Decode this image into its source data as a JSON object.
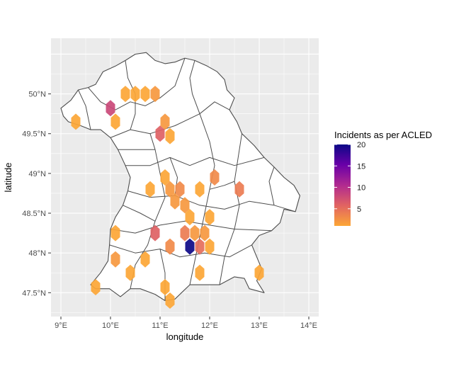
{
  "chart_data": {
    "type": "heatmap",
    "subtype": "hexbin-map",
    "title": "",
    "xlabel": "longitude",
    "ylabel": "latitude",
    "xlim": [
      8.8,
      14.2
    ],
    "ylim": [
      47.2,
      50.7
    ],
    "x_ticks": [
      {
        "value": 9,
        "label": "9°E"
      },
      {
        "value": 10,
        "label": "10°E"
      },
      {
        "value": 11,
        "label": "11°E"
      },
      {
        "value": 12,
        "label": "12°E"
      },
      {
        "value": 13,
        "label": "13°E"
      },
      {
        "value": 14,
        "label": "14°E"
      }
    ],
    "y_ticks": [
      {
        "value": 47.5,
        "label": "47.5°N"
      },
      {
        "value": 48,
        "label": "48°N"
      },
      {
        "value": 48.5,
        "label": "48.5°N"
      },
      {
        "value": 49,
        "label": "49°N"
      },
      {
        "value": 49.5,
        "label": "49.5°N"
      },
      {
        "value": 50,
        "label": "50°N"
      }
    ],
    "grid": true,
    "legend": {
      "title": "Incidents as per ACLED",
      "position": "right",
      "min": 1,
      "max": 20,
      "breaks": [
        {
          "value": 20,
          "label": "20"
        },
        {
          "value": 15,
          "label": "15"
        },
        {
          "value": 10,
          "label": "10"
        },
        {
          "value": 5,
          "label": "5"
        }
      ],
      "colors": [
        "#fca636",
        "#e16462",
        "#b12a90",
        "#6a00a8",
        "#0d0887"
      ]
    },
    "bins": [
      {
        "lon": 10.3,
        "lat": 50.0,
        "count": 1
      },
      {
        "lon": 10.5,
        "lat": 50.0,
        "count": 1
      },
      {
        "lon": 10.7,
        "lat": 50.0,
        "count": 1
      },
      {
        "lon": 10.9,
        "lat": 50.0,
        "count": 2
      },
      {
        "lon": 10.0,
        "lat": 49.82,
        "count": 8
      },
      {
        "lon": 10.1,
        "lat": 49.65,
        "count": 1
      },
      {
        "lon": 9.3,
        "lat": 49.65,
        "count": 1
      },
      {
        "lon": 11.1,
        "lat": 49.65,
        "count": 2
      },
      {
        "lon": 11.0,
        "lat": 49.5,
        "count": 6
      },
      {
        "lon": 11.2,
        "lat": 49.47,
        "count": 1
      },
      {
        "lon": 11.1,
        "lat": 48.95,
        "count": 1
      },
      {
        "lon": 12.1,
        "lat": 48.95,
        "count": 3
      },
      {
        "lon": 10.8,
        "lat": 48.8,
        "count": 1
      },
      {
        "lon": 11.2,
        "lat": 48.8,
        "count": 2
      },
      {
        "lon": 11.4,
        "lat": 48.8,
        "count": 3
      },
      {
        "lon": 11.8,
        "lat": 48.8,
        "count": 1
      },
      {
        "lon": 12.6,
        "lat": 48.8,
        "count": 4
      },
      {
        "lon": 11.3,
        "lat": 48.65,
        "count": 2
      },
      {
        "lon": 11.5,
        "lat": 48.6,
        "count": 2
      },
      {
        "lon": 11.6,
        "lat": 48.45,
        "count": 1
      },
      {
        "lon": 12.0,
        "lat": 48.45,
        "count": 1
      },
      {
        "lon": 10.1,
        "lat": 48.25,
        "count": 1
      },
      {
        "lon": 10.9,
        "lat": 48.25,
        "count": 6
      },
      {
        "lon": 11.5,
        "lat": 48.25,
        "count": 4
      },
      {
        "lon": 11.7,
        "lat": 48.25,
        "count": 2
      },
      {
        "lon": 11.9,
        "lat": 48.25,
        "count": 2
      },
      {
        "lon": 11.2,
        "lat": 48.08,
        "count": 3
      },
      {
        "lon": 11.6,
        "lat": 48.08,
        "count": 20
      },
      {
        "lon": 11.8,
        "lat": 48.08,
        "count": 5
      },
      {
        "lon": 12.0,
        "lat": 48.08,
        "count": 1
      },
      {
        "lon": 10.1,
        "lat": 47.92,
        "count": 2
      },
      {
        "lon": 10.7,
        "lat": 47.92,
        "count": 1
      },
      {
        "lon": 10.4,
        "lat": 47.75,
        "count": 1
      },
      {
        "lon": 11.8,
        "lat": 47.75,
        "count": 1
      },
      {
        "lon": 13.0,
        "lat": 47.75,
        "count": 1
      },
      {
        "lon": 9.7,
        "lat": 47.57,
        "count": 1
      },
      {
        "lon": 11.1,
        "lat": 47.57,
        "count": 1
      },
      {
        "lon": 11.2,
        "lat": 47.4,
        "count": 1
      }
    ]
  },
  "basemap": {
    "outline": [
      [
        9.0,
        49.82
      ],
      [
        9.2,
        49.92
      ],
      [
        9.35,
        50.05
      ],
      [
        9.55,
        50.08
      ],
      [
        9.7,
        50.12
      ],
      [
        9.85,
        50.28
      ],
      [
        10.1,
        50.35
      ],
      [
        10.3,
        50.42
      ],
      [
        10.5,
        50.5
      ],
      [
        10.72,
        50.52
      ],
      [
        10.9,
        50.42
      ],
      [
        11.1,
        50.38
      ],
      [
        11.3,
        50.4
      ],
      [
        11.5,
        50.45
      ],
      [
        11.7,
        50.42
      ],
      [
        11.95,
        50.35
      ],
      [
        12.15,
        50.28
      ],
      [
        12.3,
        50.18
      ],
      [
        12.35,
        50.05
      ],
      [
        12.5,
        49.95
      ],
      [
        12.4,
        49.8
      ],
      [
        12.55,
        49.65
      ],
      [
        12.65,
        49.5
      ],
      [
        12.9,
        49.35
      ],
      [
        13.1,
        49.2
      ],
      [
        13.3,
        49.08
      ],
      [
        13.5,
        48.95
      ],
      [
        13.7,
        48.85
      ],
      [
        13.82,
        48.72
      ],
      [
        13.73,
        48.52
      ],
      [
        13.5,
        48.55
      ],
      [
        13.42,
        48.38
      ],
      [
        13.25,
        48.28
      ],
      [
        13.0,
        48.22
      ],
      [
        12.85,
        48.1
      ],
      [
        12.95,
        47.95
      ],
      [
        13.05,
        47.8
      ],
      [
        12.95,
        47.65
      ],
      [
        13.1,
        47.5
      ],
      [
        12.8,
        47.55
      ],
      [
        12.7,
        47.68
      ],
      [
        12.5,
        47.7
      ],
      [
        12.2,
        47.6
      ],
      [
        11.9,
        47.6
      ],
      [
        11.6,
        47.6
      ],
      [
        11.3,
        47.42
      ],
      [
        11.1,
        47.4
      ],
      [
        10.9,
        47.48
      ],
      [
        10.6,
        47.55
      ],
      [
        10.4,
        47.55
      ],
      [
        10.2,
        47.45
      ],
      [
        9.98,
        47.55
      ],
      [
        9.7,
        47.55
      ],
      [
        9.6,
        47.6
      ],
      [
        9.8,
        47.75
      ],
      [
        9.95,
        47.9
      ],
      [
        9.98,
        48.1
      ],
      [
        10.0,
        48.3
      ],
      [
        10.1,
        48.45
      ],
      [
        10.25,
        48.6
      ],
      [
        10.35,
        48.78
      ],
      [
        10.4,
        48.95
      ],
      [
        10.3,
        49.1
      ],
      [
        10.15,
        49.3
      ],
      [
        10.0,
        49.45
      ],
      [
        9.8,
        49.55
      ],
      [
        9.6,
        49.55
      ],
      [
        9.4,
        49.6
      ],
      [
        9.15,
        49.65
      ],
      [
        9.05,
        49.72
      ],
      [
        9.0,
        49.82
      ]
    ],
    "borders": [
      [
        [
          10.0,
          49.45
        ],
        [
          10.4,
          49.55
        ],
        [
          10.8,
          49.5
        ],
        [
          11.3,
          49.6
        ],
        [
          11.8,
          49.75
        ],
        [
          12.1,
          49.9
        ],
        [
          12.4,
          49.8
        ]
      ],
      [
        [
          10.35,
          48.78
        ],
        [
          10.8,
          48.7
        ],
        [
          11.3,
          48.72
        ],
        [
          11.8,
          48.6
        ],
        [
          12.3,
          48.55
        ],
        [
          12.8,
          48.65
        ],
        [
          13.3,
          48.6
        ],
        [
          13.73,
          48.52
        ]
      ],
      [
        [
          10.3,
          49.1
        ],
        [
          10.8,
          49.1
        ],
        [
          11.2,
          49.2
        ],
        [
          11.6,
          49.1
        ],
        [
          12.0,
          49.2
        ],
        [
          12.5,
          49.1
        ],
        [
          13.1,
          49.2
        ]
      ],
      [
        [
          10.0,
          48.3
        ],
        [
          10.5,
          48.25
        ],
        [
          11.0,
          48.35
        ],
        [
          11.5,
          48.4
        ],
        [
          12.0,
          48.35
        ],
        [
          12.5,
          48.3
        ],
        [
          13.25,
          48.28
        ]
      ],
      [
        [
          9.98,
          48.1
        ],
        [
          10.5,
          48.0
        ],
        [
          11.0,
          48.05
        ],
        [
          11.4,
          47.95
        ],
        [
          11.9,
          48.0
        ],
        [
          12.4,
          47.95
        ],
        [
          12.85,
          48.1
        ]
      ],
      [
        [
          10.4,
          47.55
        ],
        [
          10.5,
          47.85
        ],
        [
          10.75,
          48.1
        ],
        [
          10.9,
          48.4
        ],
        [
          11.1,
          48.7
        ],
        [
          11.0,
          49.0
        ],
        [
          10.9,
          49.3
        ],
        [
          10.8,
          49.5
        ]
      ],
      [
        [
          11.6,
          47.6
        ],
        [
          11.7,
          47.9
        ],
        [
          11.8,
          48.2
        ],
        [
          11.9,
          48.5
        ],
        [
          12.0,
          48.8
        ],
        [
          12.1,
          49.1
        ],
        [
          12.0,
          49.4
        ],
        [
          11.8,
          49.75
        ]
      ],
      [
        [
          12.2,
          47.6
        ],
        [
          12.3,
          47.95
        ],
        [
          12.5,
          48.3
        ],
        [
          12.6,
          48.6
        ],
        [
          12.5,
          48.9
        ],
        [
          12.65,
          49.5
        ]
      ],
      [
        [
          9.55,
          50.08
        ],
        [
          9.8,
          49.9
        ],
        [
          10.1,
          49.8
        ],
        [
          10.4,
          49.9
        ],
        [
          10.7,
          49.85
        ],
        [
          11.0,
          49.95
        ],
        [
          11.3,
          50.1
        ],
        [
          11.5,
          50.45
        ]
      ],
      [
        [
          10.3,
          50.42
        ],
        [
          10.35,
          50.2
        ],
        [
          10.5,
          50.0
        ],
        [
          10.5,
          49.75
        ],
        [
          10.4,
          49.55
        ]
      ],
      [
        [
          11.7,
          50.42
        ],
        [
          11.6,
          50.2
        ],
        [
          11.65,
          50.0
        ],
        [
          11.8,
          49.75
        ]
      ],
      [
        [
          9.35,
          50.05
        ],
        [
          9.5,
          49.85
        ],
        [
          9.6,
          49.55
        ]
      ],
      [
        [
          10.15,
          49.3
        ],
        [
          10.5,
          49.3
        ],
        [
          10.9,
          49.3
        ]
      ],
      [
        [
          11.3,
          48.72
        ],
        [
          11.35,
          48.95
        ],
        [
          11.2,
          49.2
        ]
      ],
      [
        [
          12.0,
          48.8
        ],
        [
          12.3,
          48.85
        ],
        [
          12.5,
          48.9
        ]
      ],
      [
        [
          11.0,
          48.05
        ],
        [
          11.1,
          47.75
        ],
        [
          11.1,
          47.4
        ]
      ],
      [
        [
          10.9,
          48.4
        ],
        [
          10.6,
          48.5
        ],
        [
          10.25,
          48.6
        ]
      ],
      [
        [
          13.3,
          48.6
        ],
        [
          13.2,
          48.9
        ],
        [
          13.3,
          49.08
        ]
      ]
    ]
  }
}
